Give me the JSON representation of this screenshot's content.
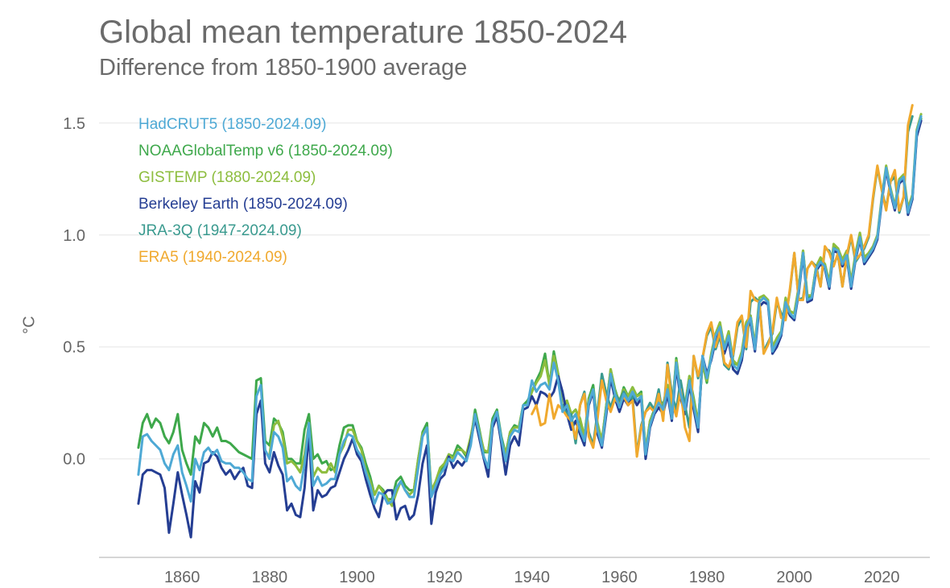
{
  "chart_data": {
    "type": "line",
    "title": "Global mean temperature 1850-2024",
    "subtitle": "Difference from 1850-1900 average",
    "xlabel": "",
    "ylabel": "°C",
    "xlim": [
      1841,
      2031
    ],
    "ylim": [
      -0.44,
      1.6
    ],
    "x_ticks": [
      1860,
      1880,
      1900,
      1920,
      1940,
      1960,
      1980,
      2000,
      2020
    ],
    "y_ticks": [
      0.0,
      0.5,
      1.0,
      1.5
    ],
    "y_tick_labels": [
      "0.0",
      "0.5",
      "1.0",
      "1.5"
    ],
    "grid": "horizontal",
    "legend": "top-left",
    "series": [
      {
        "name": "NOAAGlobalTemp v6 (1850-2024.09)",
        "color": "#3ea84b",
        "start": 1850,
        "values": [
          0.05,
          0.16,
          0.2,
          0.14,
          0.18,
          0.16,
          0.1,
          0.07,
          0.12,
          0.2,
          0.04,
          -0.02,
          -0.07,
          0.1,
          0.07,
          0.16,
          0.14,
          0.1,
          0.14,
          0.08,
          0.08,
          0.07,
          0.05,
          0.03,
          0.02,
          0.01,
          0.0,
          0.35,
          0.36,
          0.08,
          0.06,
          0.18,
          0.16,
          0.12,
          0.0,
          0.0,
          -0.02,
          -0.02,
          0.13,
          0.2,
          0.0,
          0.02,
          -0.02,
          -0.01,
          -0.05,
          -0.04,
          0.06,
          0.14,
          0.15,
          0.15,
          0.08,
          0.05,
          -0.02,
          -0.08,
          -0.16,
          -0.12,
          -0.14,
          -0.18,
          -0.18,
          -0.1,
          -0.08,
          -0.12,
          -0.14,
          -0.14,
          0.0,
          0.12,
          0.16,
          -0.16,
          -0.11,
          -0.06,
          -0.02,
          0.02,
          0.01,
          0.06,
          0.04,
          0.01,
          0.08,
          0.22,
          0.13,
          0.03,
          0.03,
          0.18,
          0.22,
          0.1,
          0.02,
          0.12,
          0.15,
          0.14,
          0.24,
          0.26,
          0.3,
          0.35,
          0.39,
          0.47,
          0.33,
          0.48,
          0.38,
          0.23,
          0.26,
          0.2,
          0.22,
          0.17,
          0.1,
          0.27,
          0.33,
          0.15,
          0.08,
          0.24,
          0.4,
          0.31,
          0.25,
          0.32,
          0.28,
          0.32,
          0.28,
          0.3,
          0.03,
          0.17,
          0.22,
          0.27,
          0.24,
          0.33,
          0.2,
          0.45,
          0.3,
          0.23,
          0.37,
          0.27,
          0.16,
          0.43,
          0.34,
          0.46,
          0.55,
          0.6,
          0.5,
          0.56,
          0.43,
          0.42,
          0.47,
          0.6,
          0.64,
          0.5,
          0.7,
          0.72,
          0.7,
          0.49,
          0.52,
          0.56,
          0.71,
          0.66,
          0.65,
          0.76,
          0.93,
          0.72,
          0.73,
          0.86,
          0.89,
          0.87,
          0.78,
          0.95,
          0.94,
          0.88,
          0.92,
          0.78,
          0.91,
          1.0,
          0.89,
          0.91,
          0.94,
          0.99,
          1.16,
          1.3,
          1.2,
          1.12,
          1.24,
          1.26,
          1.11,
          1.17,
          1.45,
          1.52
        ]
      },
      {
        "name": "GISTEMP (1880-2024.09)",
        "color": "#8dbd3e",
        "start": 1880,
        "values": [
          0.02,
          0.15,
          0.17,
          0.1,
          -0.02,
          -0.01,
          -0.03,
          -0.06,
          0.02,
          0.16,
          -0.08,
          -0.04,
          -0.06,
          -0.06,
          -0.02,
          -0.06,
          0.02,
          0.06,
          0.13,
          0.13,
          0.08,
          0.04,
          -0.05,
          -0.1,
          -0.16,
          -0.12,
          -0.15,
          -0.18,
          -0.21,
          -0.15,
          -0.1,
          -0.14,
          -0.16,
          -0.14,
          0.0,
          0.11,
          0.14,
          -0.14,
          -0.1,
          -0.04,
          -0.02,
          0.02,
          0.0,
          0.04,
          0.04,
          0.02,
          0.1,
          0.2,
          0.12,
          0.04,
          0.03,
          0.16,
          0.21,
          0.08,
          0.02,
          0.12,
          0.14,
          0.14,
          0.24,
          0.24,
          0.3,
          0.34,
          0.37,
          0.44,
          0.33,
          0.46,
          0.38,
          0.22,
          0.26,
          0.2,
          0.22,
          0.18,
          0.1,
          0.26,
          0.31,
          0.16,
          0.08,
          0.24,
          0.4,
          0.3,
          0.26,
          0.31,
          0.28,
          0.32,
          0.28,
          0.29,
          0.04,
          0.17,
          0.21,
          0.26,
          0.24,
          0.33,
          0.2,
          0.44,
          0.3,
          0.24,
          0.37,
          0.26,
          0.16,
          0.43,
          0.35,
          0.47,
          0.56,
          0.61,
          0.5,
          0.57,
          0.44,
          0.42,
          0.48,
          0.61,
          0.64,
          0.51,
          0.72,
          0.73,
          0.71,
          0.5,
          0.54,
          0.57,
          0.72,
          0.66,
          0.65,
          0.77,
          0.93,
          0.73,
          0.73,
          0.86,
          0.9,
          0.87,
          0.79,
          0.96,
          0.94,
          0.89,
          0.93,
          0.79,
          0.92,
          1.01,
          0.9,
          0.92,
          0.95,
          1.0,
          1.17,
          1.31,
          1.21,
          1.13,
          1.25,
          1.27,
          1.12,
          1.18,
          1.47,
          1.54
        ]
      },
      {
        "name": "Berkeley Earth (1850-2024.09)",
        "color": "#253e93",
        "start": 1850,
        "values": [
          -0.2,
          -0.07,
          -0.05,
          -0.05,
          -0.06,
          -0.07,
          -0.13,
          -0.33,
          -0.2,
          -0.06,
          -0.16,
          -0.25,
          -0.35,
          -0.1,
          -0.15,
          -0.02,
          -0.01,
          0.03,
          0.01,
          -0.04,
          -0.07,
          -0.05,
          -0.09,
          -0.06,
          -0.04,
          -0.12,
          -0.13,
          0.2,
          0.26,
          -0.02,
          -0.06,
          0.03,
          -0.03,
          -0.07,
          -0.23,
          -0.2,
          -0.25,
          -0.26,
          -0.13,
          0.12,
          -0.23,
          -0.14,
          -0.17,
          -0.16,
          -0.13,
          -0.12,
          -0.06,
          0.0,
          0.04,
          0.09,
          0.02,
          -0.01,
          -0.09,
          -0.16,
          -0.22,
          -0.26,
          -0.16,
          -0.14,
          -0.14,
          -0.27,
          -0.22,
          -0.21,
          -0.27,
          -0.25,
          -0.16,
          -0.02,
          0.06,
          -0.29,
          -0.15,
          -0.09,
          -0.07,
          0.01,
          -0.04,
          -0.01,
          -0.03,
          0.0,
          0.08,
          0.18,
          0.09,
          0.0,
          -0.08,
          0.14,
          0.19,
          0.07,
          -0.07,
          0.06,
          0.1,
          0.06,
          0.22,
          0.23,
          0.28,
          0.24,
          0.3,
          0.29,
          0.27,
          0.3,
          0.37,
          0.3,
          0.2,
          0.13,
          0.17,
          0.11,
          0.06,
          0.24,
          0.3,
          0.11,
          0.05,
          0.2,
          0.36,
          0.27,
          0.21,
          0.27,
          0.24,
          0.28,
          0.24,
          0.27,
          0.0,
          0.14,
          0.2,
          0.23,
          0.2,
          0.29,
          0.17,
          0.41,
          0.27,
          0.2,
          0.33,
          0.22,
          0.12,
          0.46,
          0.38,
          0.44,
          0.53,
          0.57,
          0.47,
          0.53,
          0.4,
          0.38,
          0.44,
          0.58,
          0.61,
          0.48,
          0.68,
          0.7,
          0.69,
          0.47,
          0.5,
          0.55,
          0.69,
          0.64,
          0.62,
          0.74,
          0.91,
          0.7,
          0.71,
          0.84,
          0.87,
          0.85,
          0.76,
          0.93,
          0.92,
          0.86,
          0.9,
          0.76,
          0.89,
          0.98,
          0.87,
          0.9,
          0.93,
          0.98,
          1.15,
          1.29,
          1.19,
          1.11,
          1.23,
          1.25,
          1.09,
          1.16,
          1.44,
          1.51
        ]
      },
      {
        "name": "JRA-3Q (1947-2024.09)",
        "color": "#3a9a8f",
        "start": 1947,
        "values": [
          0.24,
          0.2,
          0.2,
          0.07,
          0.24,
          0.3,
          0.12,
          0.06,
          0.21,
          0.38,
          0.29,
          0.23,
          0.29,
          0.26,
          0.3,
          0.26,
          0.28,
          0.02,
          0.15,
          0.21,
          0.25,
          0.22,
          0.31,
          0.18,
          0.43,
          0.29,
          0.22,
          0.35,
          0.24,
          0.14,
          0.46,
          0.36,
          0.45,
          0.55,
          0.59,
          0.49,
          0.55,
          0.42,
          0.4,
          0.46,
          0.59,
          0.63,
          0.49,
          0.7,
          0.72,
          0.7,
          0.48,
          0.52,
          0.56,
          0.7,
          0.65,
          0.63,
          0.75,
          0.92,
          0.71,
          0.72,
          0.85,
          0.88,
          0.86,
          0.77,
          0.94,
          0.93,
          0.87,
          0.91,
          0.77,
          0.9,
          0.99,
          0.88,
          0.91,
          0.94,
          0.99,
          1.16,
          1.3,
          1.2,
          1.12,
          1.24,
          1.26,
          1.1,
          1.17,
          1.46,
          1.53
        ]
      },
      {
        "name": "ERA5 (1940-2024.09)",
        "color": "#f0a92e",
        "start": 1940,
        "values": [
          0.2,
          0.24,
          0.15,
          0.16,
          0.29,
          0.18,
          0.24,
          0.22,
          0.19,
          0.17,
          0.09,
          0.24,
          0.29,
          0.1,
          0.05,
          0.18,
          0.35,
          0.26,
          0.21,
          0.27,
          0.24,
          0.28,
          0.24,
          0.26,
          0.01,
          0.14,
          0.21,
          0.23,
          0.21,
          0.29,
          0.17,
          0.42,
          0.26,
          0.19,
          0.31,
          0.14,
          0.08,
          0.46,
          0.37,
          0.45,
          0.56,
          0.61,
          0.5,
          0.57,
          0.43,
          0.41,
          0.47,
          0.61,
          0.64,
          0.5,
          0.75,
          0.71,
          0.7,
          0.47,
          0.51,
          0.57,
          0.72,
          0.63,
          0.62,
          0.76,
          0.92,
          0.71,
          0.71,
          0.85,
          0.88,
          0.85,
          0.77,
          0.95,
          0.92,
          0.86,
          0.92,
          0.77,
          0.91,
          1.0,
          0.89,
          0.91,
          0.95,
          1.0,
          1.17,
          1.31,
          1.2,
          1.11,
          1.24,
          1.29,
          1.11,
          1.17,
          1.49,
          1.58
        ]
      },
      {
        "name": "HadCRUT5 (1850-2024.09)",
        "color": "#4ea9d5",
        "start": 1850,
        "values": [
          -0.07,
          0.1,
          0.11,
          0.08,
          0.06,
          0.04,
          -0.02,
          -0.05,
          0.02,
          0.06,
          -0.06,
          -0.12,
          -0.19,
          0.0,
          -0.05,
          0.03,
          0.05,
          0.02,
          0.04,
          -0.01,
          -0.02,
          -0.02,
          -0.04,
          -0.04,
          -0.06,
          -0.09,
          -0.1,
          0.28,
          0.33,
          0.04,
          0.0,
          0.12,
          0.1,
          0.05,
          -0.1,
          -0.08,
          -0.12,
          -0.14,
          -0.02,
          0.16,
          -0.12,
          -0.08,
          -0.12,
          -0.11,
          -0.09,
          -0.09,
          0.02,
          0.08,
          0.11,
          0.1,
          0.04,
          0.01,
          -0.06,
          -0.12,
          -0.2,
          -0.15,
          -0.16,
          -0.2,
          -0.19,
          -0.13,
          -0.1,
          -0.14,
          -0.17,
          -0.17,
          -0.04,
          0.1,
          0.14,
          -0.17,
          -0.12,
          -0.07,
          -0.04,
          0.0,
          -0.01,
          0.03,
          0.01,
          -0.01,
          0.06,
          0.2,
          0.11,
          0.01,
          -0.04,
          0.16,
          0.21,
          0.09,
          -0.01,
          0.1,
          0.13,
          0.12,
          0.24,
          0.24,
          0.35,
          0.3,
          0.33,
          0.34,
          0.31,
          0.43,
          0.35,
          0.21,
          0.24,
          0.17,
          0.2,
          0.13,
          0.08,
          0.25,
          0.31,
          0.13,
          0.06,
          0.22,
          0.38,
          0.29,
          0.23,
          0.29,
          0.26,
          0.3,
          0.26,
          0.28,
          0.02,
          0.15,
          0.21,
          0.25,
          0.22,
          0.31,
          0.18,
          0.43,
          0.29,
          0.22,
          0.35,
          0.24,
          0.14,
          0.46,
          0.36,
          0.45,
          0.55,
          0.59,
          0.49,
          0.55,
          0.42,
          0.4,
          0.46,
          0.59,
          0.63,
          0.49,
          0.7,
          0.72,
          0.7,
          0.48,
          0.52,
          0.56,
          0.7,
          0.65,
          0.63,
          0.75,
          0.92,
          0.71,
          0.72,
          0.85,
          0.88,
          0.86,
          0.77,
          0.94,
          0.93,
          0.87,
          0.91,
          0.77,
          0.9,
          0.99,
          0.88,
          0.91,
          0.94,
          0.99,
          1.16,
          1.3,
          1.2,
          1.12,
          1.24,
          1.26,
          1.1,
          1.17,
          1.46,
          1.53
        ]
      }
    ],
    "legend_entries": [
      {
        "label": "HadCRUT5 (1850-2024.09)",
        "color": "#4ea9d5"
      },
      {
        "label": "NOAAGlobalTemp v6 (1850-2024.09)",
        "color": "#3ea84b"
      },
      {
        "label": "GISTEMP (1880-2024.09)",
        "color": "#8dbd3e"
      },
      {
        "label": "Berkeley Earth (1850-2024.09)",
        "color": "#253e93"
      },
      {
        "label": "JRA-3Q (1947-2024.09)",
        "color": "#3a9a8f"
      },
      {
        "label": "ERA5 (1940-2024.09)",
        "color": "#f0a92e"
      }
    ]
  }
}
